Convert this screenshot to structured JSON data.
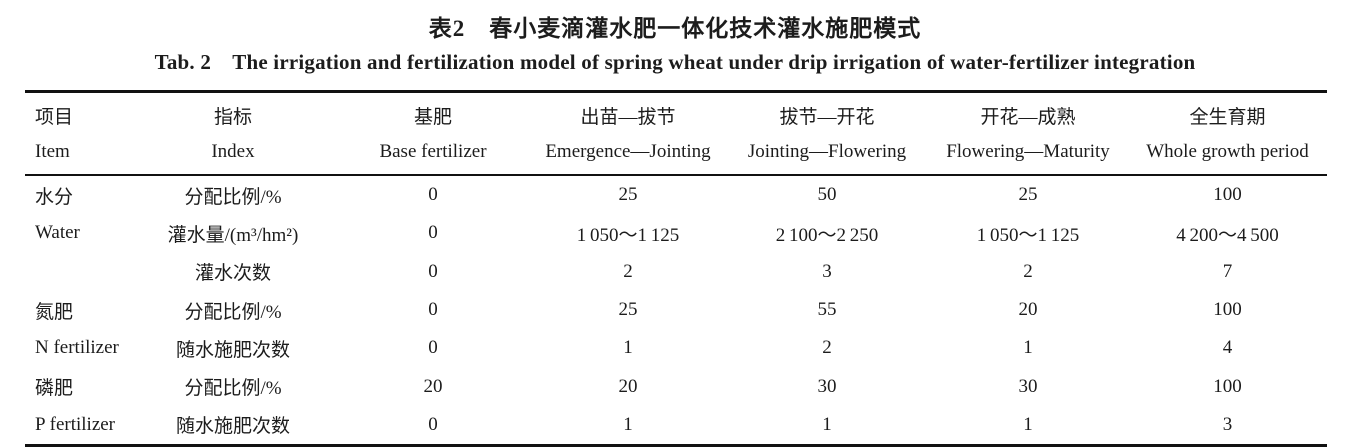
{
  "page": {
    "background": "#ffffff",
    "text_color": "#1c1c1c",
    "rule_color": "#111111"
  },
  "title_zh": "表2　春小麦滴灌水肥一体化技术灌水施肥模式",
  "title_en": "Tab. 2 The irrigation and fertilization model of spring wheat under drip irrigation of water-fertilizer integration",
  "table": {
    "columns": [
      {
        "zh": "项目",
        "en": "Item"
      },
      {
        "zh": "指标",
        "en": "Index"
      },
      {
        "zh": "基肥",
        "en": "Base fertilizer"
      },
      {
        "zh": "出苗—拔节",
        "en": "Emergence—Jointing"
      },
      {
        "zh": "拔节—开花",
        "en": "Jointing—Flowering"
      },
      {
        "zh": "开花—成熟",
        "en": "Flowering—Maturity"
      },
      {
        "zh": "全生育期",
        "en": "Whole growth period"
      }
    ],
    "rows": [
      [
        "水分",
        "分配比例/%",
        "0",
        "25",
        "50",
        "25",
        "100"
      ],
      [
        "Water",
        "灌水量/(m³/hm²)",
        "0",
        "1 050～1 125",
        "2 100～2 250",
        "1 050～1 125",
        "4 200～4 500"
      ],
      [
        "",
        "灌水次数",
        "0",
        "2",
        "3",
        "2",
        "7"
      ],
      [
        "氮肥",
        "分配比例/%",
        "0",
        "25",
        "55",
        "20",
        "100"
      ],
      [
        "N fertilizer",
        "随水施肥次数",
        "0",
        "1",
        "2",
        "1",
        "4"
      ],
      [
        "磷肥",
        "分配比例/%",
        "20",
        "20",
        "30",
        "30",
        "100"
      ],
      [
        "P fertilizer",
        "随水施肥次数",
        "0",
        "1",
        "1",
        "1",
        "3"
      ]
    ]
  }
}
